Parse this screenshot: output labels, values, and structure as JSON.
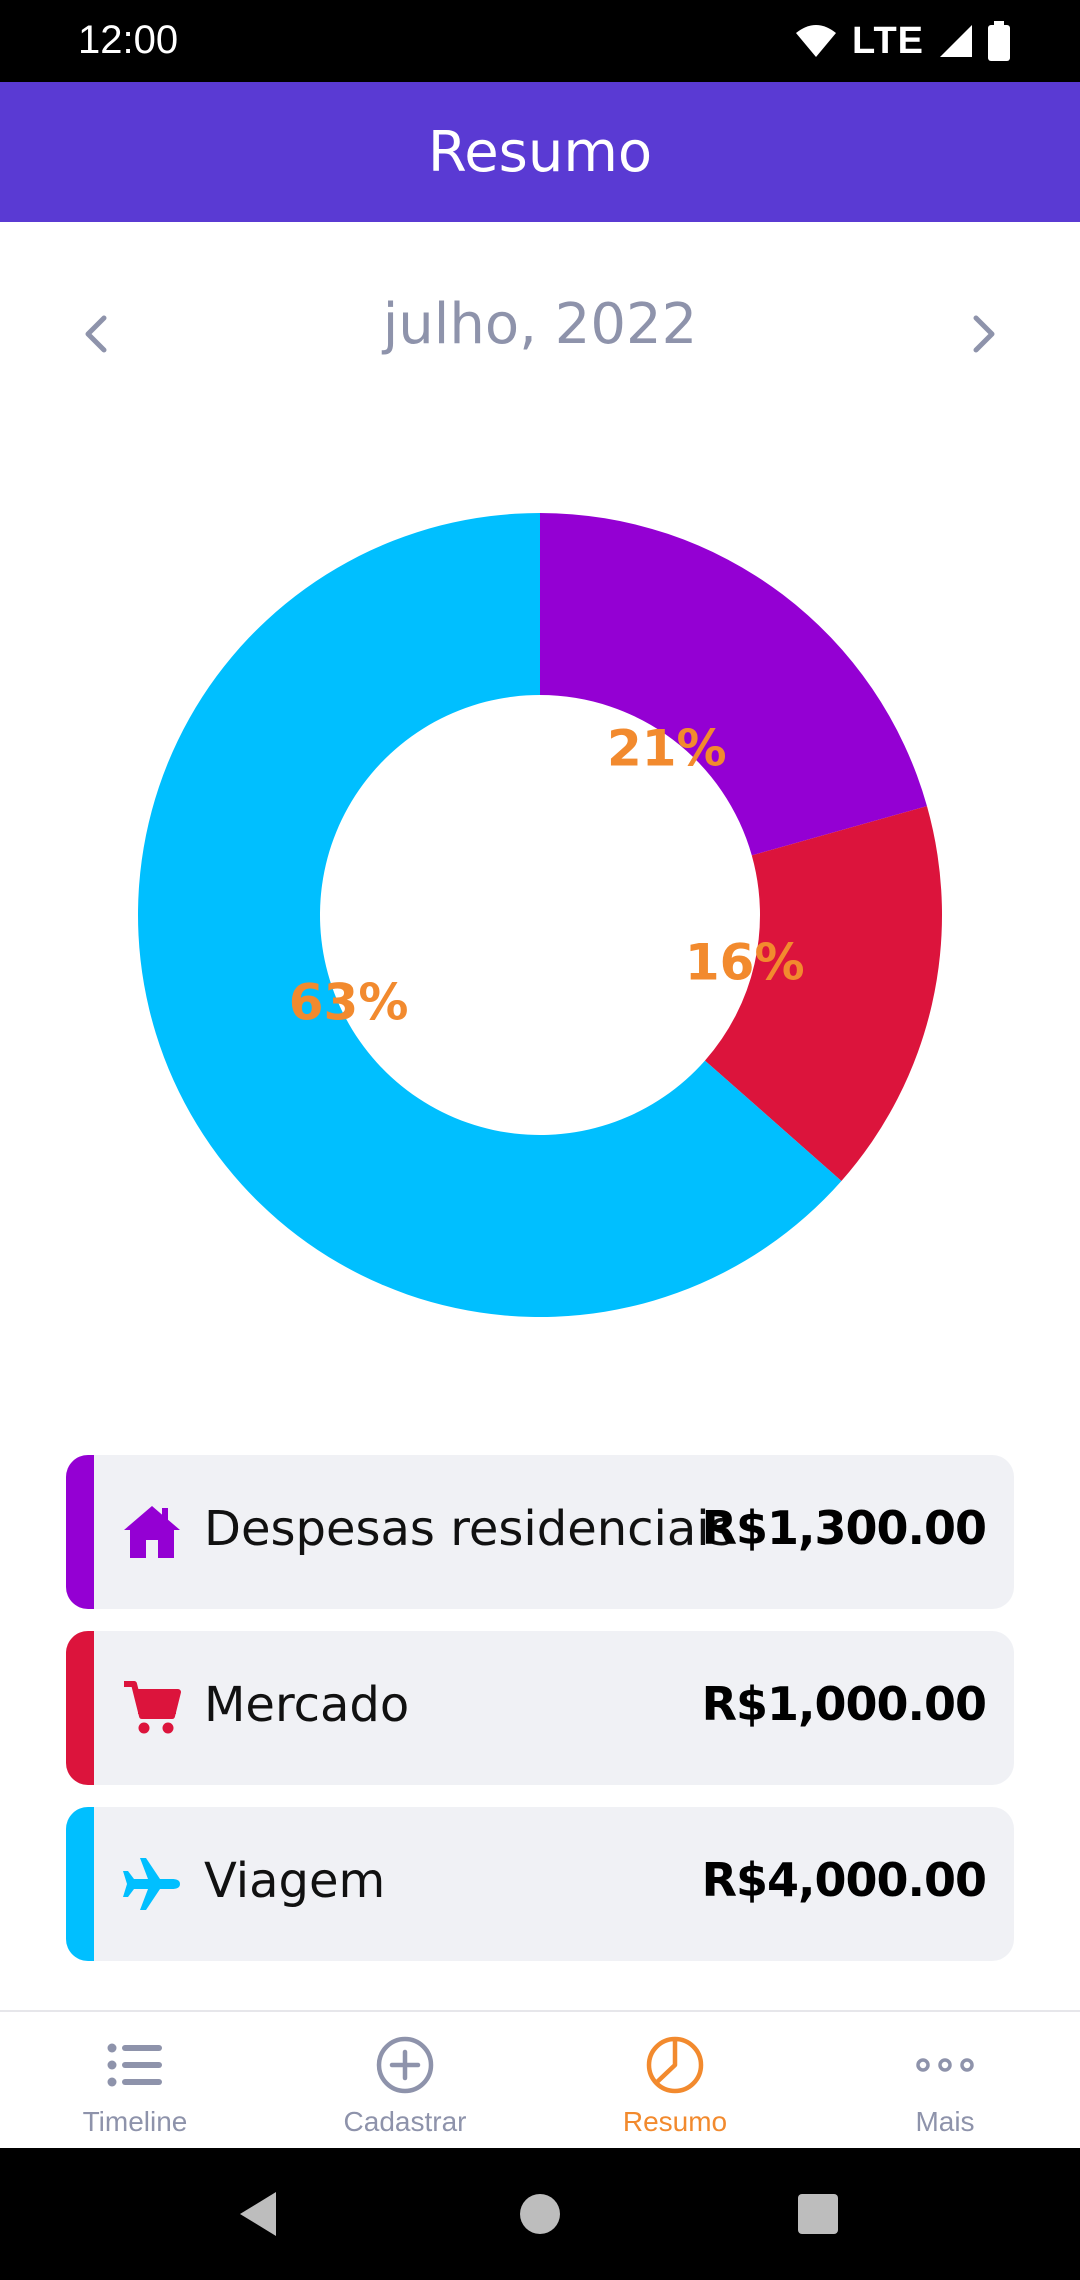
{
  "status_bar": {
    "time": "12:00",
    "network": "LTE"
  },
  "app_bar": {
    "title": "Resumo"
  },
  "month_selector": {
    "label": "julho, 2022"
  },
  "chart_data": {
    "type": "pie",
    "variant": "donut",
    "slices": [
      {
        "label": "Despesas residenciais",
        "value": 1300,
        "percent_label": "21%",
        "color": "#9400d3"
      },
      {
        "label": "Mercado",
        "value": 1000,
        "percent_label": "16%",
        "color": "#dc143c"
      },
      {
        "label": "Viagem",
        "value": 4000,
        "percent_label": "63%",
        "color": "#00bfff"
      }
    ],
    "label_color": "#f28a2e"
  },
  "categories": [
    {
      "name": "Despesas residenciais",
      "amount": "R$1,300.00",
      "color": "#9400d3",
      "icon": "house-icon"
    },
    {
      "name": "Mercado",
      "amount": "R$1,000.00",
      "color": "#dc143c",
      "icon": "cart-icon"
    },
    {
      "name": "Viagem",
      "amount": "R$4,000.00",
      "color": "#00bfff",
      "icon": "airplane-icon"
    }
  ],
  "bottom_nav": {
    "tabs": [
      {
        "label": "Timeline",
        "icon": "list-icon",
        "active": false
      },
      {
        "label": "Cadastrar",
        "icon": "add-circle-icon",
        "active": false
      },
      {
        "label": "Resumo",
        "icon": "pie-chart-icon",
        "active": true
      },
      {
        "label": "Mais",
        "icon": "more-dots-icon",
        "active": false
      }
    ]
  },
  "colors": {
    "primary": "#5a3ad3",
    "accent": "#f28a2e",
    "muted": "#8e93ab"
  }
}
